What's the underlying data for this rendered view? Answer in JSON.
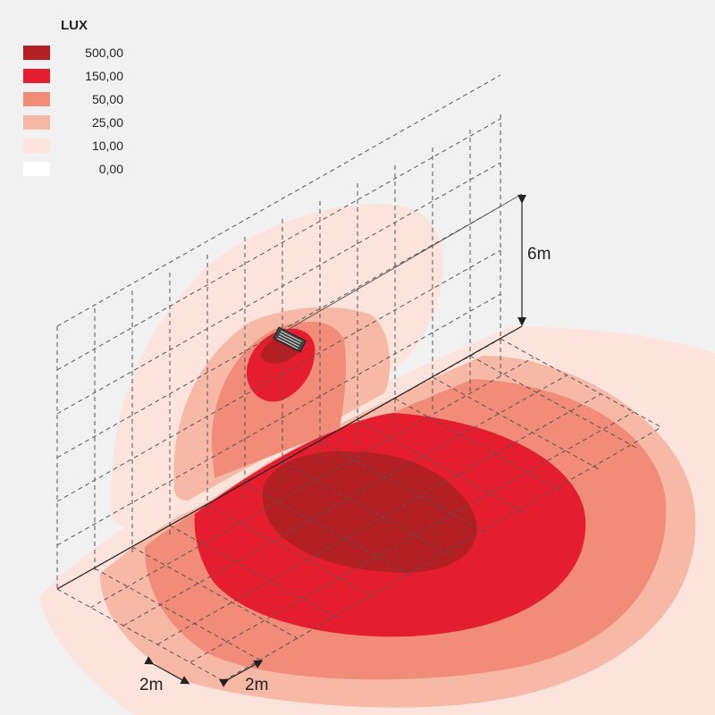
{
  "legend": {
    "title": "LUX",
    "items": [
      {
        "value": "500,00",
        "color": "#b22024"
      },
      {
        "value": "150,00",
        "color": "#e41e2f"
      },
      {
        "value": "50,00",
        "color": "#f08c78"
      },
      {
        "value": "25,00",
        "color": "#f7b8a6"
      },
      {
        "value": "10,00",
        "color": "#fce3db"
      },
      {
        "value": "0,00",
        "color": "#ffffff"
      }
    ]
  },
  "dimensions": {
    "height_label": "6m",
    "grid_x_label": "2m",
    "grid_y_label": "2m"
  },
  "icons": {
    "fixture": "floodlight-fixture-icon"
  }
}
